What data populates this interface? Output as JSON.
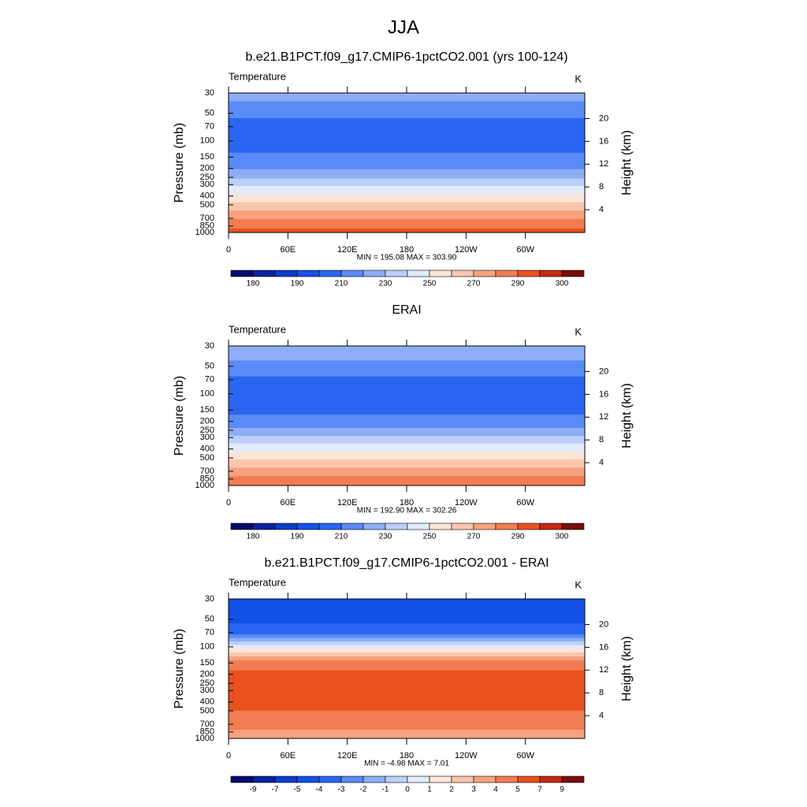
{
  "title": "JJA",
  "chart_data": [
    {
      "type": "contour",
      "title": "b.e21.B1PCT.f09_g17.CMIP6-1pctCO2.001 (yrs 100-124)",
      "left_label": "Temperature",
      "right_label": "K",
      "ylabel": "Pressure (mb)",
      "y2label": "Height (km)",
      "stats": "MIN = 195.08  MAX = 303.90",
      "pressure": [
        30,
        50,
        70,
        100,
        150,
        200,
        250,
        300,
        400,
        500,
        700,
        850,
        1000
      ],
      "values": [
        225,
        213,
        205,
        204,
        212,
        219,
        228,
        238,
        252,
        263,
        279,
        287,
        294
      ],
      "ylim": [
        1000,
        30
      ],
      "log_y": true,
      "yticks": [
        30,
        50,
        70,
        100,
        150,
        200,
        250,
        300,
        400,
        500,
        700,
        850,
        1000
      ],
      "y2lim": [
        0,
        24.5
      ],
      "y2ticks": [
        4,
        8,
        12,
        16,
        20
      ],
      "xlim": [
        0,
        360
      ],
      "xticks": [
        0,
        {
          "value": 60,
          "label": "60E"
        },
        {
          "value": 120,
          "label": "120E"
        },
        180,
        {
          "value": 240,
          "label": "120W"
        },
        {
          "value": 300,
          "label": "60W"
        }
      ],
      "levels": [
        180,
        185,
        190,
        200,
        210,
        220,
        230,
        240,
        250,
        260,
        270,
        280,
        290,
        295,
        300
      ],
      "colorbar_ticks": [
        180,
        190,
        210,
        230,
        250,
        270,
        290,
        300
      ],
      "colors": [
        "#08086e",
        "#0a22a0",
        "#0a3cc8",
        "#1450e6",
        "#2a66f2",
        "#5a8af5",
        "#8daef6",
        "#bccff8",
        "#e2ebfb",
        "#fbe4d6",
        "#f9c6ad",
        "#f6a27f",
        "#f27c52",
        "#e9511f",
        "#c42a0e",
        "#7b0c0c"
      ]
    },
    {
      "type": "contour",
      "title": "ERAI",
      "left_label": "Temperature",
      "right_label": "K",
      "ylabel": "Pressure (mb)",
      "y2label": "Height (km)",
      "stats": "MIN = 192.90  MAX = 302.26",
      "pressure": [
        30,
        50,
        70,
        100,
        150,
        200,
        250,
        300,
        400,
        500,
        700,
        850,
        1000
      ],
      "values": [
        228,
        217,
        208,
        204,
        207,
        214,
        222,
        232,
        247,
        258,
        274,
        283,
        290
      ],
      "ylim": [
        1000,
        30
      ],
      "log_y": true,
      "yticks": [
        30,
        50,
        70,
        100,
        150,
        200,
        250,
        300,
        400,
        500,
        700,
        850,
        1000
      ],
      "y2lim": [
        0,
        24.5
      ],
      "y2ticks": [
        4,
        8,
        12,
        16,
        20
      ],
      "xlim": [
        0,
        360
      ],
      "xticks": [
        0,
        {
          "value": 60,
          "label": "60E"
        },
        {
          "value": 120,
          "label": "120E"
        },
        180,
        {
          "value": 240,
          "label": "120W"
        },
        {
          "value": 300,
          "label": "60W"
        }
      ],
      "levels": [
        180,
        185,
        190,
        200,
        210,
        220,
        230,
        240,
        250,
        260,
        270,
        280,
        290,
        295,
        300
      ],
      "colorbar_ticks": [
        180,
        190,
        210,
        230,
        250,
        270,
        290,
        300
      ],
      "colors": [
        "#08086e",
        "#0a22a0",
        "#0a3cc8",
        "#1450e6",
        "#2a66f2",
        "#5a8af5",
        "#8daef6",
        "#bccff8",
        "#e2ebfb",
        "#fbe4d6",
        "#f9c6ad",
        "#f6a27f",
        "#f27c52",
        "#e9511f",
        "#c42a0e",
        "#7b0c0c"
      ]
    },
    {
      "type": "contour",
      "title": "b.e21.B1PCT.f09_g17.CMIP6-1pctCO2.001 - ERAI",
      "left_label": "Temperature",
      "right_label": "K",
      "ylabel": "Pressure (mb)",
      "y2label": "Height (km)",
      "stats": "MIN =  -4.98  MAX =   7.01",
      "pressure": [
        30,
        50,
        70,
        100,
        150,
        200,
        250,
        300,
        400,
        500,
        700,
        850,
        1000
      ],
      "values": [
        -4.5,
        -4.2,
        -3.6,
        0.5,
        4.6,
        5.2,
        5.3,
        5.3,
        5.2,
        5.0,
        4.6,
        3.8,
        3.2
      ],
      "ylim": [
        1000,
        30
      ],
      "log_y": true,
      "yticks": [
        30,
        50,
        70,
        100,
        150,
        200,
        250,
        300,
        400,
        500,
        700,
        850,
        1000
      ],
      "y2lim": [
        0,
        24.5
      ],
      "y2ticks": [
        4,
        8,
        12,
        16,
        20
      ],
      "xlim": [
        0,
        360
      ],
      "xticks": [
        0,
        {
          "value": 60,
          "label": "60E"
        },
        {
          "value": 120,
          "label": "120E"
        },
        180,
        {
          "value": 240,
          "label": "120W"
        },
        {
          "value": 300,
          "label": "60W"
        }
      ],
      "levels": [
        -9,
        -7,
        -5,
        -4,
        -3,
        -2,
        -1,
        0,
        1,
        2,
        3,
        4,
        5,
        7,
        9
      ],
      "colorbar_ticks": [
        -9,
        -7,
        -5,
        -4,
        -3,
        -2,
        -1,
        0,
        1,
        2,
        3,
        4,
        5,
        7,
        9
      ],
      "colors": [
        "#08086e",
        "#0a22a0",
        "#0a3cc8",
        "#1450e6",
        "#2a66f2",
        "#5a8af5",
        "#8daef6",
        "#bccff8",
        "#e2ebfb",
        "#fbe4d6",
        "#f9c6ad",
        "#f6a27f",
        "#f27c52",
        "#e9511f",
        "#c42a0e",
        "#7b0c0c"
      ]
    }
  ]
}
